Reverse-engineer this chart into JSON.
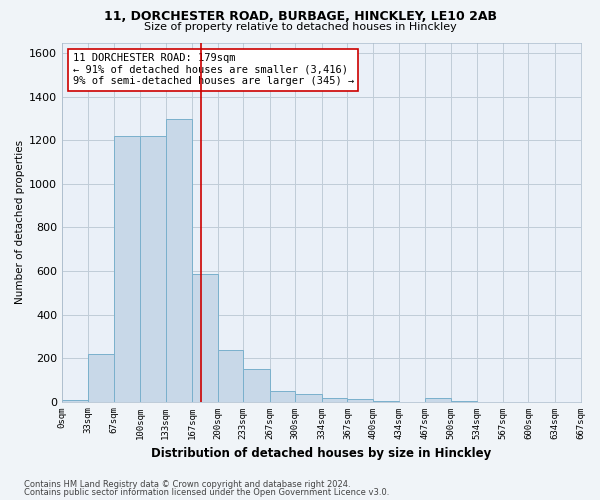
{
  "title1": "11, DORCHESTER ROAD, BURBAGE, HINCKLEY, LE10 2AB",
  "title2": "Size of property relative to detached houses in Hinckley",
  "xlabel": "Distribution of detached houses by size in Hinckley",
  "ylabel": "Number of detached properties",
  "bin_edges": [
    0,
    33,
    67,
    100,
    133,
    167,
    200,
    233,
    267,
    300,
    334,
    367,
    400,
    434,
    467,
    500,
    534,
    567,
    600,
    634,
    667
  ],
  "bar_heights": [
    5,
    220,
    1220,
    1220,
    1300,
    585,
    235,
    150,
    50,
    35,
    18,
    10,
    2,
    0,
    15,
    2,
    0,
    0,
    0,
    0
  ],
  "bar_color": "#c8d8e8",
  "bar_edge_color": "#7ab0cc",
  "vline_x": 179,
  "vline_color": "#cc0000",
  "annotation_line1": "11 DORCHESTER ROAD: 179sqm",
  "annotation_line2": "← 91% of detached houses are smaller (3,416)",
  "annotation_line3": "9% of semi-detached houses are larger (345) →",
  "ylim": [
    0,
    1650
  ],
  "yticks": [
    0,
    200,
    400,
    600,
    800,
    1000,
    1200,
    1400,
    1600
  ],
  "footer1": "Contains HM Land Registry data © Crown copyright and database right 2024.",
  "footer2": "Contains public sector information licensed under the Open Government Licence v3.0.",
  "bg_color": "#f0f4f8",
  "plot_bg_color": "#eaf0f8",
  "grid_color": "#c0ccd8"
}
